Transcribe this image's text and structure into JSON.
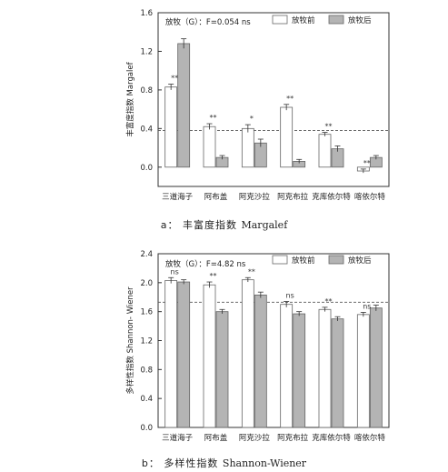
{
  "chart_data": [
    {
      "type": "bar",
      "panel_label": "a",
      "caption_prefix": "a：",
      "caption_cn": "丰富度指数",
      "caption_en": "Margalef",
      "ylabel": "丰富度指数 Margalef",
      "annotation": "放牧（G）：F=0.054 ns",
      "ylim": [
        -0.2,
        1.6
      ],
      "yticks": [
        0.0,
        0.4,
        0.8,
        1.2,
        1.6
      ],
      "ytick_labels": [
        "0.0",
        "0.4",
        "0.8",
        "1.2",
        "1.6"
      ],
      "reference_line": 0.38,
      "categories": [
        "三道海子",
        "阿布盖",
        "阿克沙拉",
        "阿克布拉",
        "克库依尔特",
        "喀依尔特"
      ],
      "series": [
        {
          "name": "放牧前",
          "color": "#ffffff",
          "values": [
            0.83,
            0.42,
            0.4,
            0.62,
            0.34,
            -0.04
          ],
          "errors": [
            0.03,
            0.03,
            0.04,
            0.03,
            0.02,
            0.02
          ]
        },
        {
          "name": "放牧后",
          "color": "#b4b4b4",
          "values": [
            1.28,
            0.1,
            0.25,
            0.06,
            0.19,
            0.1
          ],
          "errors": [
            0.05,
            0.02,
            0.04,
            0.02,
            0.03,
            0.02
          ]
        }
      ],
      "significance": [
        "**",
        "**",
        "*",
        "**",
        "**",
        "**"
      ]
    },
    {
      "type": "bar",
      "panel_label": "b",
      "caption_prefix": "b：",
      "caption_cn": "多样性指数",
      "caption_en": "Shannon-Wiener",
      "ylabel": "多样性指数 Shannon- Wiener",
      "annotation": "放牧（G）：F=4.82 ns",
      "ylim": [
        0.0,
        2.4
      ],
      "yticks": [
        0.0,
        0.4,
        0.8,
        1.2,
        1.6,
        2.0,
        2.4
      ],
      "ytick_labels": [
        "0.0",
        "0.4",
        "0.8",
        "1.2",
        "1.6",
        "2.0",
        "2.4"
      ],
      "reference_line": 1.73,
      "categories": [
        "三道海子",
        "阿布盖",
        "阿克沙拉",
        "阿克布拉",
        "克库依尔特",
        "喀依尔特"
      ],
      "series": [
        {
          "name": "放牧前",
          "color": "#ffffff",
          "values": [
            2.03,
            1.97,
            2.04,
            1.7,
            1.63,
            1.56
          ],
          "errors": [
            0.04,
            0.04,
            0.03,
            0.04,
            0.03,
            0.03
          ]
        },
        {
          "name": "放牧后",
          "color": "#b4b4b4",
          "values": [
            2.01,
            1.6,
            1.83,
            1.57,
            1.5,
            1.65
          ],
          "errors": [
            0.03,
            0.03,
            0.04,
            0.03,
            0.03,
            0.04
          ]
        }
      ],
      "significance": [
        "ns",
        "**",
        "**",
        "ns",
        "**",
        "ns"
      ]
    }
  ]
}
